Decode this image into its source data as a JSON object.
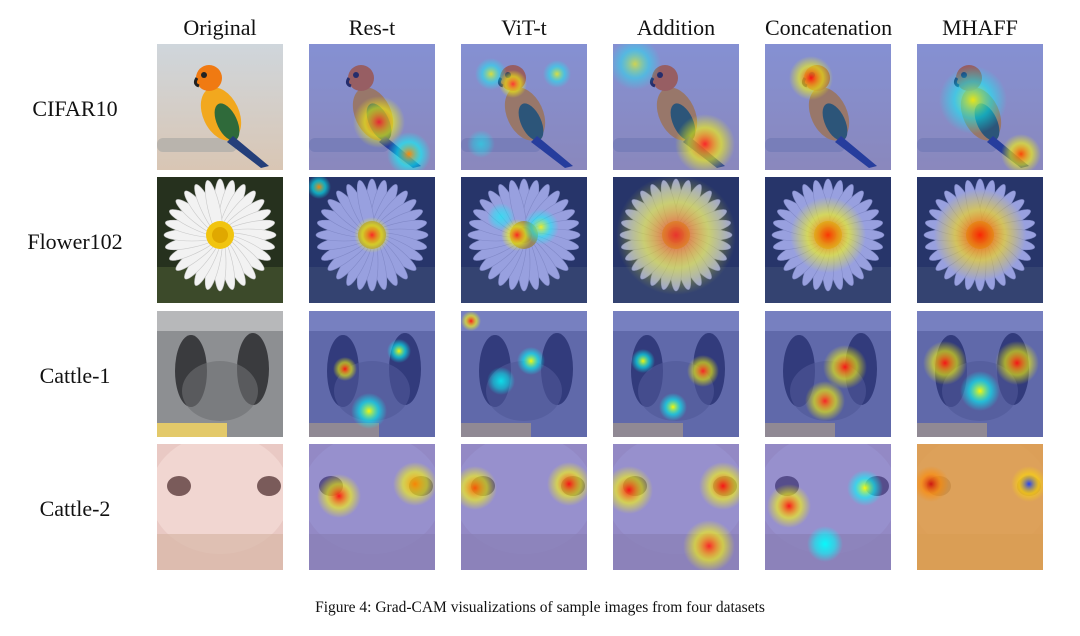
{
  "columns": [
    "Original",
    "Res-t",
    "ViT-t",
    "Addition",
    "Concatenation",
    "MHAFF"
  ],
  "rows": [
    "CIFAR10",
    "Flower102",
    "Cattle-1",
    "Cattle-2"
  ],
  "caption": "Figure 4: Grad-CAM visualizations of sample images from four datasets"
}
